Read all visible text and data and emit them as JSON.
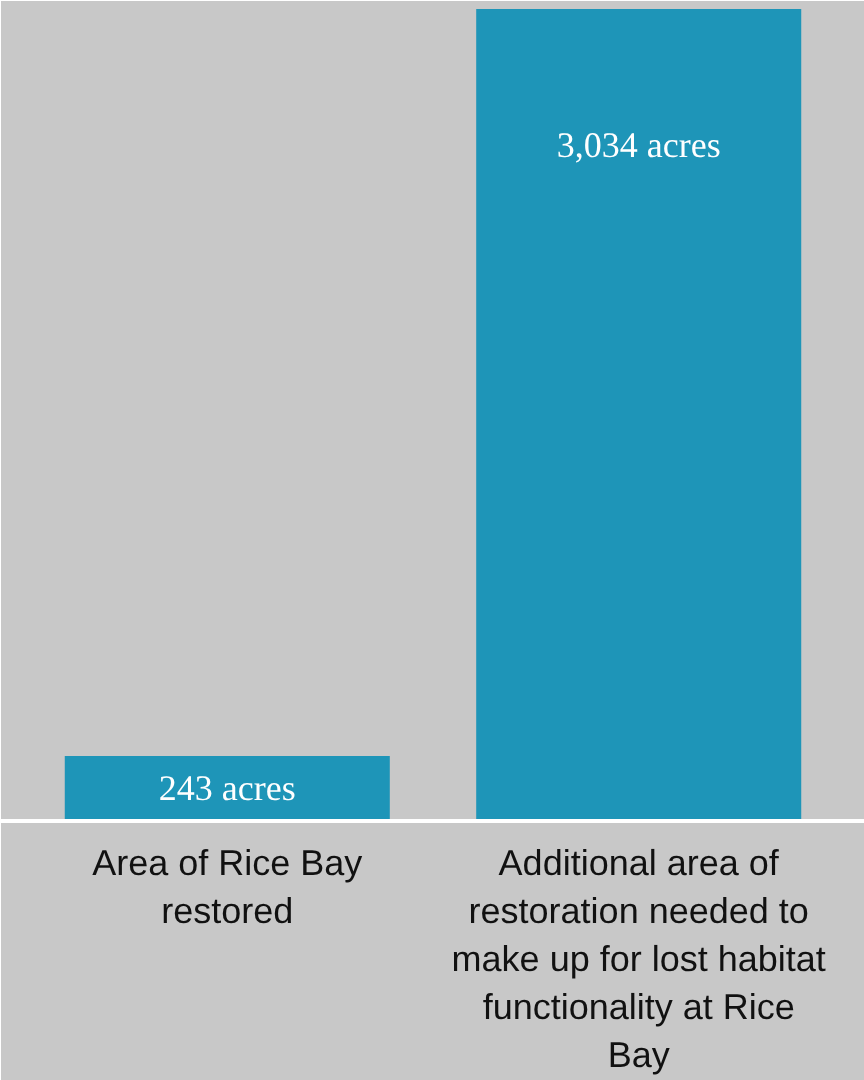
{
  "chart_data": {
    "type": "bar",
    "categories": [
      "Area of Rice Bay restored",
      "Additional area of restoration needed to make up for lost habitat functionality at Rice Bay"
    ],
    "values": [
      243,
      3034
    ],
    "color": "#1e95b8",
    "value_labels": [
      "243 acres",
      "3,034 acres"
    ],
    "grid": false
  }
}
